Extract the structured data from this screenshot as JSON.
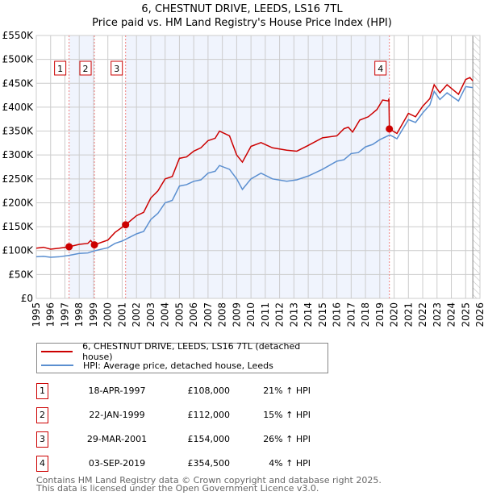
{
  "chart_data": {
    "type": "line",
    "title": "6, CHESTNUT DRIVE, LEEDS, LS16 7TL",
    "subtitle": "Price paid vs. HM Land Registry's House Price Index (HPI)",
    "xlim": [
      1995,
      2026
    ],
    "ylim": [
      0,
      550000
    ],
    "x_ticks": [
      "1995",
      "1996",
      "1997",
      "1998",
      "1999",
      "2000",
      "2001",
      "2002",
      "2003",
      "2004",
      "2005",
      "2006",
      "2007",
      "2008",
      "2009",
      "2010",
      "2011",
      "2012",
      "2013",
      "2014",
      "2015",
      "2016",
      "2017",
      "2018",
      "2019",
      "2020",
      "2021",
      "2022",
      "2023",
      "2024",
      "2025",
      "2026"
    ],
    "y_ticks": [
      "£0",
      "£50K",
      "£100K",
      "£150K",
      "£200K",
      "£250K",
      "£300K",
      "£350K",
      "£400K",
      "£450K",
      "£500K",
      "£550K"
    ],
    "grid": true,
    "series": [
      {
        "name": "6, CHESTNUT DRIVE, LEEDS, LS16 7TL (detached house)",
        "color": "#cc0000",
        "x": [
          1995,
          1995.5,
          1996,
          1996.6,
          1997.29,
          1998,
          1998.6,
          1998.8,
          1999.06,
          2000,
          2000.5,
          2001.24,
          2002,
          2002.5,
          2003,
          2003.5,
          2004,
          2004.5,
          2005,
          2005.5,
          2006,
          2006.5,
          2007,
          2007.5,
          2007.8,
          2008.5,
          2009,
          2009.4,
          2010,
          2010.7,
          2011.5,
          2012.5,
          2013.2,
          2014,
          2015,
          2016,
          2016.5,
          2016.8,
          2017.1,
          2017.6,
          2018.2,
          2018.8,
          2019.2,
          2019.6,
          2019.64,
          2019.67,
          2020.2,
          2021,
          2021.5,
          2022,
          2022.5,
          2022.8,
          2023.2,
          2023.7,
          2024.5,
          2025,
          2025.3,
          2025.5
        ],
        "y": [
          105000,
          107000,
          103000,
          105000,
          108000,
          113000,
          115000,
          121000,
          112000,
          122000,
          138000,
          154000,
          173000,
          180000,
          210000,
          225000,
          250000,
          255000,
          293000,
          296000,
          308000,
          315000,
          330000,
          335000,
          350000,
          340000,
          300000,
          285000,
          318000,
          326000,
          315000,
          310000,
          308000,
          320000,
          336000,
          340000,
          355000,
          358000,
          348000,
          373000,
          380000,
          395000,
          415000,
          413000,
          418000,
          354500,
          345000,
          387000,
          380000,
          402000,
          418000,
          447000,
          430000,
          447000,
          427000,
          458000,
          462000,
          455000
        ]
      },
      {
        "name": "HPI: Average price, detached house, Leeds",
        "color": "#5b8fd0",
        "x": [
          1995,
          1995.5,
          1996,
          1996.6,
          1997.3,
          1998,
          1998.6,
          1999,
          2000,
          2000.5,
          2001,
          2002,
          2002.5,
          2003,
          2003.5,
          2004,
          2004.5,
          2005,
          2005.5,
          2006,
          2006.5,
          2007,
          2007.5,
          2007.8,
          2008.5,
          2009,
          2009.4,
          2010,
          2010.7,
          2011.5,
          2012.5,
          2013.2,
          2014,
          2015,
          2016,
          2016.5,
          2017,
          2017.5,
          2018,
          2018.5,
          2019,
          2019.7,
          2020.2,
          2021,
          2021.5,
          2022,
          2022.5,
          2022.8,
          2023.2,
          2023.7,
          2024.5,
          2025,
          2025.5
        ],
        "y": [
          87000,
          88000,
          86000,
          87000,
          90000,
          94000,
          95000,
          99000,
          106000,
          115000,
          120000,
          135000,
          140000,
          165000,
          178000,
          200000,
          205000,
          235000,
          238000,
          245000,
          248000,
          262000,
          266000,
          278000,
          270000,
          250000,
          228000,
          250000,
          262000,
          250000,
          245000,
          248000,
          256000,
          270000,
          287000,
          290000,
          303000,
          305000,
          317000,
          322000,
          332000,
          342000,
          334000,
          374000,
          368000,
          388000,
          405000,
          433000,
          416000,
          430000,
          413000,
          443000,
          441000
        ]
      }
    ],
    "sales": [
      {
        "label": "1",
        "x": 1997.29,
        "date": "18-APR-1997",
        "price_value": 108000,
        "price": "£108,000",
        "hpi": "21% ↑ HPI"
      },
      {
        "label": "2",
        "x": 1999.06,
        "date": "22-JAN-1999",
        "price_value": 112000,
        "price": "£112,000",
        "hpi": "15% ↑ HPI"
      },
      {
        "label": "3",
        "x": 2001.24,
        "date": "29-MAR-2001",
        "price_value": 154000,
        "price": "£154,000",
        "hpi": "26% ↑ HPI"
      },
      {
        "label": "4",
        "x": 2019.67,
        "date": "03-SEP-2019",
        "price_value": 354500,
        "price": "£354,500",
        "hpi": "4% ↑ HPI"
      }
    ],
    "forecast_from": 2025.5
  },
  "footer": {
    "line1": "Contains HM Land Registry data © Crown copyright and database right 2025.",
    "line2": "This data is licensed under the Open Government Licence v3.0."
  }
}
